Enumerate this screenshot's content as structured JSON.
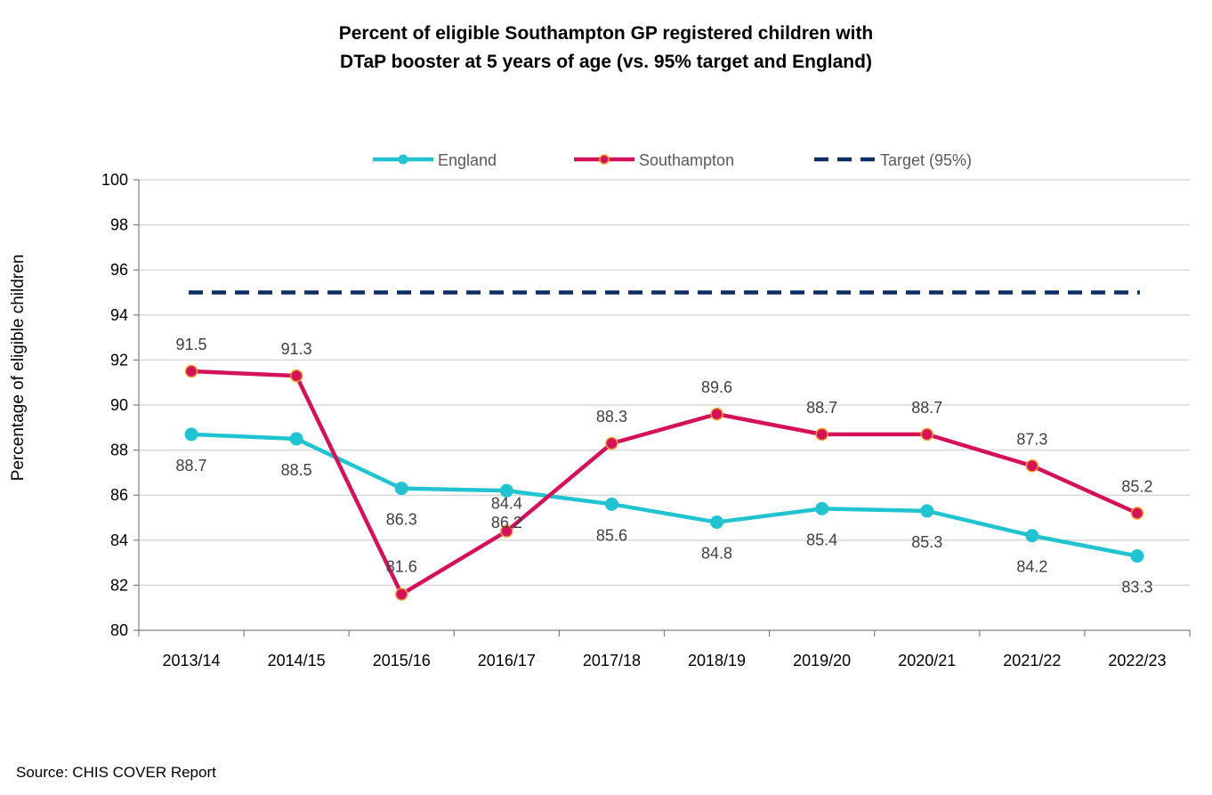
{
  "chart_data": {
    "type": "line",
    "title_line1": "Percent of eligible  Southampton GP registered children with",
    "title_line2": "DTaP booster at 5 years of age (vs. 95% target and England)",
    "xlabel": "",
    "ylabel": "Percentage of eligible children",
    "ylim": [
      80,
      100
    ],
    "yticks": [
      "80",
      "82",
      "84",
      "86",
      "88",
      "90",
      "92",
      "94",
      "96",
      "98",
      "100"
    ],
    "categories": [
      "2013/14",
      "2014/15",
      "2015/16",
      "2016/17",
      "2017/18",
      "2018/19",
      "2019/20",
      "2020/21",
      "2021/22",
      "2022/23"
    ],
    "series": [
      {
        "name": "England",
        "color": "#22C3D1",
        "values": [
          88.7,
          88.5,
          86.3,
          86.2,
          85.6,
          84.8,
          85.4,
          85.3,
          84.2,
          83.3
        ],
        "labels": [
          "88.7",
          "88.5",
          "86.3",
          "86.2",
          "85.6",
          "84.8",
          "85.4",
          "85.3",
          "84.2",
          "83.3"
        ]
      },
      {
        "name": "Southampton",
        "color": "#D3125A",
        "marker_edge": "#F0A030",
        "values": [
          91.5,
          91.3,
          81.6,
          84.4,
          88.3,
          89.6,
          88.7,
          88.7,
          87.3,
          85.2
        ],
        "labels": [
          "91.5",
          "91.3",
          "81.6",
          "84.4",
          "88.3",
          "89.6",
          "88.7",
          "88.7",
          "87.3",
          "85.2"
        ]
      },
      {
        "name": "Target (95%)",
        "color": "#0E2D62",
        "values": [
          95,
          95,
          95,
          95,
          95,
          95,
          95,
          95,
          95,
          95
        ]
      }
    ],
    "legend_position": "top-center",
    "grid": true
  },
  "source_text": "Source: CHIS COVER Report"
}
